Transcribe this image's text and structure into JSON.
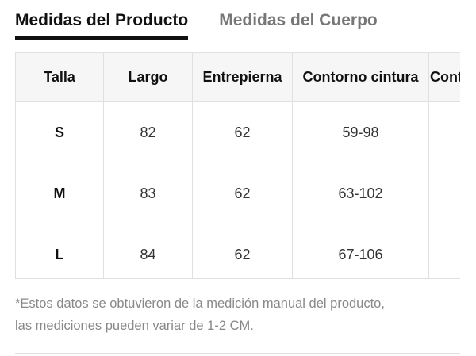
{
  "tabs": [
    {
      "label": "Medidas del Producto",
      "active": true
    },
    {
      "label": "Medidas del Cuerpo",
      "active": false
    }
  ],
  "table": {
    "headers": [
      "Talla",
      "Largo",
      "Entrepierna",
      "Contorno cintura",
      "Contorno cadera"
    ],
    "rows": [
      {
        "size": "S",
        "largo": "82",
        "entrepierna": "62",
        "cintura": "59-98",
        "cadera": ""
      },
      {
        "size": "M",
        "largo": "83",
        "entrepierna": "62",
        "cintura": "63-102",
        "cadera": ""
      },
      {
        "size": "L",
        "largo": "84",
        "entrepierna": "62",
        "cintura": "67-106",
        "cadera": ""
      }
    ]
  },
  "note": {
    "line1": "*Estos datos se obtuvieron de la medición manual del producto,",
    "line2": "las mediciones pueden variar de 1-2 CM."
  }
}
